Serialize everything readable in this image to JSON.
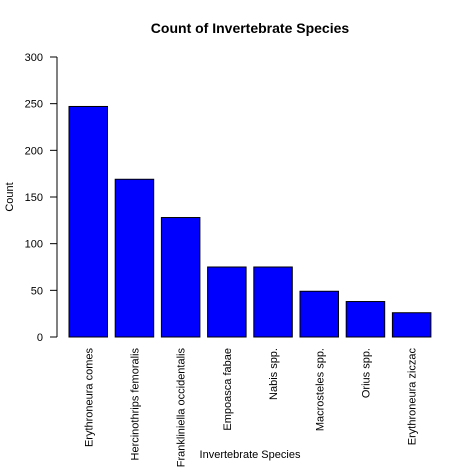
{
  "chart_data": {
    "type": "bar",
    "title": "Count of Invertebrate Species",
    "xlabel": "Invertebrate Species",
    "ylabel": "Count",
    "categories": [
      "Erythroneura comes",
      "Hercinothrips femoralis",
      "Frankliniella occidentalis",
      "Empoasca fabae",
      "Nabis spp.",
      "Macrosteles spp.",
      "Orius spp.",
      "Erythroneura ziczac"
    ],
    "values": [
      247,
      169,
      128,
      75,
      75,
      49,
      38,
      26
    ],
    "ylim": [
      0,
      300
    ],
    "yticks": [
      0,
      50,
      100,
      150,
      200,
      250,
      300
    ],
    "bar_color": "#0000FF",
    "bar_border_color": "#000000",
    "grid": false
  }
}
